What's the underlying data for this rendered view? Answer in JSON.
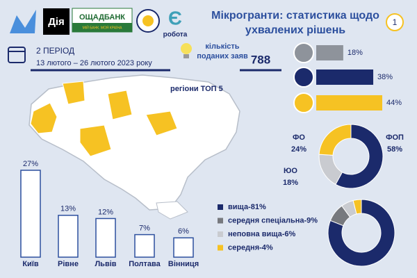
{
  "header": {
    "logo_diia": "Дія",
    "logo_bank": "ОЩАДБАНК",
    "logo_bank_slogan": "МІЙ БАНК. МОЯ КРАЇНА",
    "logo_robota": "робота",
    "title": "Мікрогранти: статистика щодо ухвалених рішень",
    "badge": "1",
    "period": "2 ПЕРІОД",
    "dates": "13 лютого – 26 лютого 2023 року",
    "applications_label": "кількість поданих заяв",
    "applications": 788,
    "map_label": "регіони ТОП 5"
  },
  "chart_data": [
    {
      "type": "bar",
      "categories": [
        "Київ",
        "Рівне",
        "Львів",
        "Полтава",
        "Вінниця"
      ],
      "values": [
        27,
        13,
        12,
        7,
        6
      ],
      "value_labels": [
        "27%",
        "13%",
        "12%",
        "7%",
        "6%"
      ],
      "color": "#ffffff",
      "edge_color": "#2c4f9e"
    },
    {
      "type": "hbar",
      "values": [
        18,
        38,
        44
      ],
      "value_labels": [
        "18%",
        "38%",
        "44%"
      ],
      "colors": [
        "#8e939b",
        "#1b2a6b",
        "#f6c223"
      ]
    },
    {
      "type": "donut",
      "categories": [
        "ФОП",
        "ЮО",
        "ФО"
      ],
      "values": [
        58,
        18,
        24
      ],
      "value_labels": [
        "58%",
        "18%",
        "24%"
      ],
      "colors": [
        "#1b2a6b",
        "#c9cbd0",
        "#f6c223"
      ]
    },
    {
      "type": "donut",
      "legend": [
        "вища-81%",
        "середня спеціальна-9%",
        "неповна вища-6%",
        "середня-4%"
      ],
      "values": [
        81,
        9,
        6,
        4
      ],
      "colors": [
        "#1b2a6b",
        "#77797e",
        "#c9cbd0",
        "#f6c223"
      ]
    }
  ]
}
